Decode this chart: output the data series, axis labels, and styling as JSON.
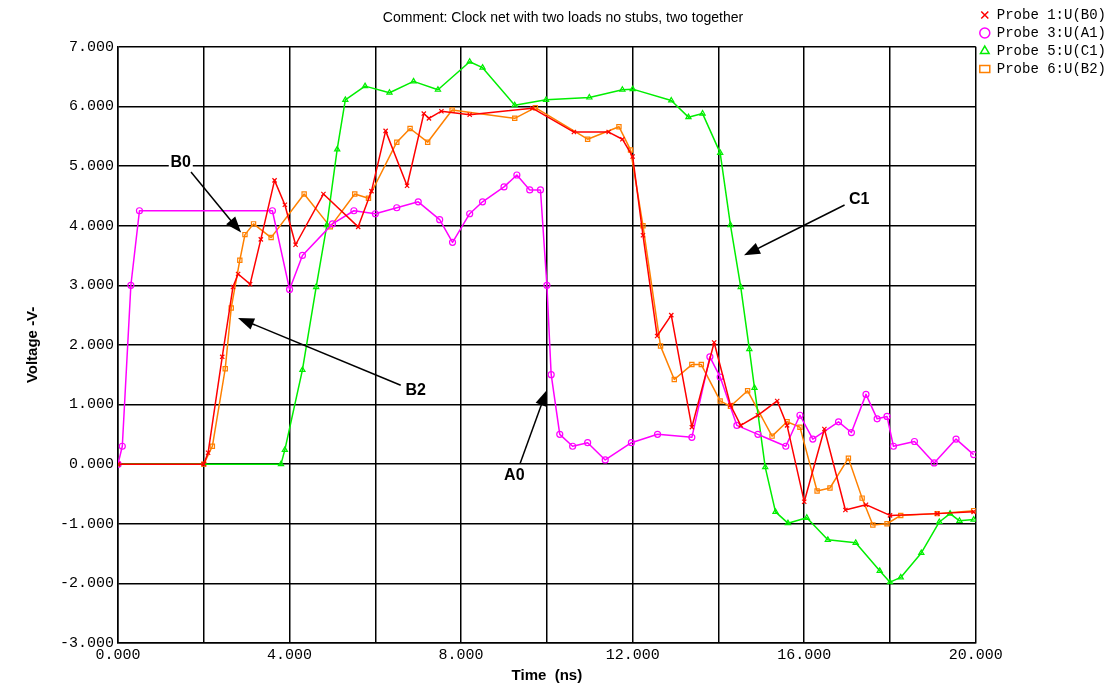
{
  "chart_data": {
    "type": "line",
    "title": "Comment: Clock net with two loads no stubs, two together",
    "xlabel": "Time  (ns)",
    "ylabel": "Voltage -V-",
    "xlim": [
      0,
      20
    ],
    "xticks": [
      {
        "value": 0,
        "label": "0.000"
      },
      {
        "value": 2,
        "label": null
      },
      {
        "value": 4,
        "label": "4.000"
      },
      {
        "value": 6,
        "label": null
      },
      {
        "value": 8,
        "label": "8.000"
      },
      {
        "value": 10,
        "label": null
      },
      {
        "value": 12,
        "label": "12.000"
      },
      {
        "value": 14,
        "label": null
      },
      {
        "value": 16,
        "label": "16.000"
      },
      {
        "value": 18,
        "label": null
      },
      {
        "value": 20,
        "label": "20.000"
      }
    ],
    "ylim": [
      -3,
      7
    ],
    "yticks": [
      {
        "value": -3,
        "label": "-3.000"
      },
      {
        "value": -2,
        "label": "-2.000"
      },
      {
        "value": -1,
        "label": "-1.000"
      },
      {
        "value": 0,
        "label": "0.000"
      },
      {
        "value": 1,
        "label": "1.000"
      },
      {
        "value": 2,
        "label": "2.000"
      },
      {
        "value": 3,
        "label": "3.000"
      },
      {
        "value": 4,
        "label": "4.000"
      },
      {
        "value": 5,
        "label": "5.000"
      },
      {
        "value": 6,
        "label": "6.000"
      },
      {
        "value": 7,
        "label": "7.000"
      }
    ],
    "grid": true,
    "legend": "top right",
    "line_style": "solid",
    "series": [
      {
        "name": "Probe 1:U(B0)",
        "color": "#ff0000",
        "marker": "cross",
        "x": [
          0,
          2.0,
          2.1,
          2.43,
          2.68,
          2.8,
          3.08,
          3.33,
          3.65,
          3.89,
          4.14,
          4.79,
          5.6,
          5.91,
          6.24,
          6.74,
          7.13,
          7.25,
          7.54,
          8.2,
          9.66,
          10.63,
          11.44,
          11.76,
          12.0,
          12.24,
          12.57,
          12.9,
          13.38,
          13.9,
          14.28,
          14.52,
          14.92,
          15.37,
          15.6,
          16.0,
          16.47,
          16.96,
          17.44,
          18.0,
          19.1,
          19.95
        ],
        "values": [
          0,
          0,
          0.19,
          1.8,
          2.97,
          3.19,
          3.02,
          3.77,
          4.76,
          4.35,
          3.68,
          4.53,
          3.98,
          4.58,
          5.59,
          4.67,
          5.88,
          5.8,
          5.92,
          5.86,
          5.97,
          5.57,
          5.57,
          5.45,
          5.16,
          3.84,
          2.15,
          2.5,
          0.62,
          2.04,
          0.99,
          0.65,
          0.82,
          1.06,
          0.65,
          -0.63,
          0.59,
          -0.77,
          -0.68,
          -0.86,
          -0.83,
          -0.8
        ]
      },
      {
        "name": "Probe 3:U(A1)",
        "color": "#ff00ff",
        "marker": "circle",
        "x": [
          0,
          0.1,
          0.3,
          0.5,
          3.6,
          4.0,
          4.3,
          5.0,
          5.5,
          6.0,
          6.5,
          7.0,
          7.5,
          7.8,
          8.2,
          8.5,
          9.0,
          9.3,
          9.6,
          9.85,
          10.0,
          10.1,
          10.3,
          10.6,
          10.95,
          11.36,
          11.97,
          12.58,
          13.38,
          13.8,
          14.04,
          14.43,
          14.92,
          15.57,
          15.9,
          16.2,
          16.8,
          17.1,
          17.44,
          17.7,
          17.93,
          18.08,
          18.57,
          19.03,
          19.54,
          19.95
        ],
        "values": [
          0,
          0.3,
          3.0,
          4.25,
          4.25,
          2.93,
          3.5,
          4.03,
          4.25,
          4.2,
          4.3,
          4.4,
          4.1,
          3.72,
          4.2,
          4.4,
          4.65,
          4.85,
          4.6,
          4.6,
          3.0,
          1.5,
          0.5,
          0.3,
          0.36,
          0.07,
          0.36,
          0.5,
          0.45,
          1.8,
          1.46,
          0.65,
          0.5,
          0.3,
          0.82,
          0.42,
          0.71,
          0.53,
          1.17,
          0.76,
          0.8,
          0.3,
          0.38,
          0.02,
          0.42,
          0.16
        ]
      },
      {
        "name": "Probe 5:U(C1)",
        "color": "#00ee00",
        "marker": "triangle",
        "x": [
          0,
          3.8,
          3.89,
          4.3,
          4.62,
          4.87,
          5.11,
          5.3,
          5.76,
          6.33,
          6.89,
          7.46,
          8.2,
          8.5,
          9.25,
          9.98,
          10.99,
          11.76,
          12.0,
          12.9,
          13.3,
          13.63,
          14.04,
          14.28,
          14.52,
          14.72,
          14.84,
          15.09,
          15.33,
          15.62,
          16.06,
          16.55,
          17.2,
          17.76,
          18.0,
          18.25,
          18.73,
          19.15,
          19.4,
          19.62,
          19.95
        ],
        "values": [
          0,
          0,
          0.24,
          1.58,
          2.97,
          4.01,
          5.28,
          6.11,
          6.34,
          6.23,
          6.42,
          6.28,
          6.75,
          6.65,
          6.02,
          6.11,
          6.15,
          6.28,
          6.29,
          6.1,
          5.82,
          5.88,
          5.22,
          4.01,
          2.97,
          1.93,
          1.28,
          -0.05,
          -0.8,
          -0.99,
          -0.9,
          -1.27,
          -1.32,
          -1.79,
          -1.98,
          -1.9,
          -1.49,
          -0.97,
          -0.83,
          -0.95,
          -0.93
        ]
      },
      {
        "name": "Probe 6:U(B2)",
        "color": "#ff8000",
        "marker": "square",
        "x": [
          0,
          2.0,
          2.2,
          2.5,
          2.64,
          2.84,
          2.96,
          3.16,
          3.57,
          4.34,
          4.95,
          5.52,
          5.84,
          6.5,
          6.81,
          7.22,
          7.79,
          9.25,
          9.73,
          10.95,
          11.68,
          11.95,
          12.24,
          12.65,
          12.97,
          13.38,
          13.6,
          14.04,
          14.28,
          14.68,
          15.25,
          15.6,
          15.9,
          16.3,
          16.6,
          17.03,
          17.35,
          17.6,
          17.93,
          18.25,
          19.1,
          19.95
        ],
        "values": [
          0,
          0,
          0.3,
          1.6,
          2.62,
          3.42,
          3.85,
          4.03,
          3.8,
          4.53,
          3.98,
          4.53,
          4.46,
          5.4,
          5.63,
          5.4,
          5.94,
          5.8,
          5.98,
          5.45,
          5.66,
          5.27,
          4.0,
          1.98,
          1.42,
          1.67,
          1.67,
          1.06,
          0.97,
          1.23,
          0.47,
          0.71,
          0.62,
          -0.45,
          -0.4,
          0.1,
          -0.57,
          -1.02,
          -1.0,
          -0.86,
          -0.83,
          -0.78
        ]
      }
    ],
    "annotations": [
      "B0",
      "B2",
      "A0",
      "C1"
    ]
  }
}
